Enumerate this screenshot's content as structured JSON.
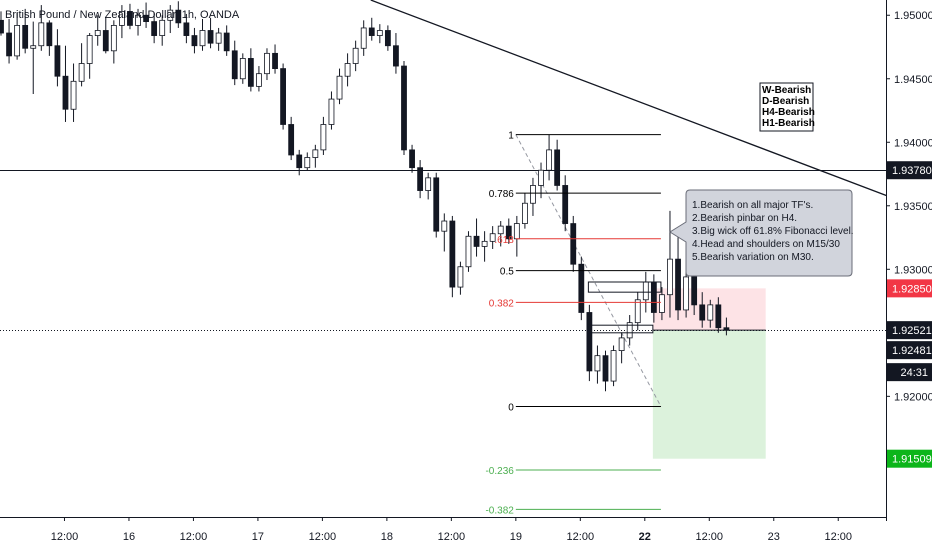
{
  "header": {
    "title": "British Pound / New Zealand Dollar, 1h, OANDA"
  },
  "colors": {
    "background": "#ffffff",
    "candle_up": "#ffffff",
    "candle_down": "#131722",
    "candle_border": "#131722",
    "fib_black": "#000000",
    "fib_red": "#e53935",
    "fib_green": "#4caf50",
    "stop_zone": "#fde3e6",
    "target_zone": "#dcf2dc",
    "badge_dark": "#131722",
    "badge_red": "#f23645",
    "badge_green": "#0cb51a",
    "note_fill": "#d1d4dc"
  },
  "chart_data": {
    "type": "candlestick",
    "symbol": "British Pound / New Zealand Dollar",
    "timeframe": "1h",
    "source": "OANDA",
    "ylim": [
      1.9105,
      1.9512
    ],
    "y_ticks": [
      {
        "value": 1.95,
        "label": "1.95000"
      },
      {
        "value": 1.945,
        "label": "1.94500"
      },
      {
        "value": 1.94,
        "label": "1.94000"
      },
      {
        "value": 1.935,
        "label": "1.93500"
      },
      {
        "value": 1.93,
        "label": "1.93000"
      },
      {
        "value": 1.92,
        "label": "1.92000"
      }
    ],
    "x_ticks": [
      {
        "index": 8,
        "label": "12:00"
      },
      {
        "index": 16,
        "label": "16"
      },
      {
        "index": 24,
        "label": "12:00"
      },
      {
        "index": 32,
        "label": "17"
      },
      {
        "index": 40,
        "label": "12:00"
      },
      {
        "index": 48,
        "label": "18"
      },
      {
        "index": 56,
        "label": "12:00"
      },
      {
        "index": 64,
        "label": "19"
      },
      {
        "index": 72,
        "label": "12:00"
      },
      {
        "index": 80,
        "label": "22",
        "bold": true
      },
      {
        "index": 88,
        "label": "12:00"
      },
      {
        "index": 96,
        "label": "23"
      },
      {
        "index": 104,
        "label": "12:00"
      }
    ],
    "candles": [
      [
        1.9496,
        1.9503,
        1.9484,
        1.9486
      ],
      [
        1.9486,
        1.9497,
        1.9462,
        1.9468
      ],
      [
        1.9468,
        1.9502,
        1.9465,
        1.9492
      ],
      [
        1.9492,
        1.9505,
        1.947,
        1.9474
      ],
      [
        1.9474,
        1.9495,
        1.9438,
        1.9476
      ],
      [
        1.9476,
        1.9508,
        1.9472,
        1.9494
      ],
      [
        1.9494,
        1.9496,
        1.9468,
        1.9476
      ],
      [
        1.9476,
        1.9489,
        1.9444,
        1.9452
      ],
      [
        1.9452,
        1.9476,
        1.9416,
        1.9426
      ],
      [
        1.9426,
        1.9462,
        1.9416,
        1.9448
      ],
      [
        1.9448,
        1.9478,
        1.9444,
        1.9462
      ],
      [
        1.9462,
        1.9486,
        1.945,
        1.9484
      ],
      [
        1.9484,
        1.95,
        1.9476,
        1.9488
      ],
      [
        1.9488,
        1.9498,
        1.947,
        1.9472
      ],
      [
        1.9472,
        1.9496,
        1.9462,
        1.9492
      ],
      [
        1.9492,
        1.9508,
        1.9482,
        1.9503
      ],
      [
        1.9503,
        1.9509,
        1.9489,
        1.9492
      ],
      [
        1.9492,
        1.9505,
        1.9484,
        1.95
      ],
      [
        1.95,
        1.951,
        1.949,
        1.9495
      ],
      [
        1.9495,
        1.9502,
        1.9478,
        1.9484
      ],
      [
        1.9484,
        1.95,
        1.9476,
        1.9496
      ],
      [
        1.9496,
        1.9508,
        1.9486,
        1.9504
      ],
      [
        1.9504,
        1.9511,
        1.949,
        1.9494
      ],
      [
        1.9494,
        1.9501,
        1.9478,
        1.9484
      ],
      [
        1.9484,
        1.949,
        1.947,
        1.9476
      ],
      [
        1.9476,
        1.9497,
        1.9472,
        1.9488
      ],
      [
        1.9488,
        1.9498,
        1.9474,
        1.9478
      ],
      [
        1.9478,
        1.949,
        1.9472,
        1.9486
      ],
      [
        1.9486,
        1.9492,
        1.9468,
        1.9472
      ],
      [
        1.9472,
        1.948,
        1.9445,
        1.945
      ],
      [
        1.945,
        1.947,
        1.9446,
        1.9466
      ],
      [
        1.9466,
        1.9474,
        1.944,
        1.9444
      ],
      [
        1.9444,
        1.946,
        1.944,
        1.9454
      ],
      [
        1.9454,
        1.9474,
        1.9449,
        1.947
      ],
      [
        1.947,
        1.9477,
        1.9454,
        1.9458
      ],
      [
        1.9458,
        1.9462,
        1.941,
        1.9414
      ],
      [
        1.9414,
        1.942,
        1.9386,
        1.939
      ],
      [
        1.939,
        1.9394,
        1.9374,
        1.938
      ],
      [
        1.938,
        1.9392,
        1.9378,
        1.9388
      ],
      [
        1.9388,
        1.9398,
        1.938,
        1.9394
      ],
      [
        1.9394,
        1.942,
        1.939,
        1.9414
      ],
      [
        1.9414,
        1.944,
        1.941,
        1.9434
      ],
      [
        1.9434,
        1.9458,
        1.943,
        1.9452
      ],
      [
        1.9452,
        1.947,
        1.9444,
        1.9462
      ],
      [
        1.9462,
        1.948,
        1.9456,
        1.9474
      ],
      [
        1.9474,
        1.9496,
        1.9468,
        1.949
      ],
      [
        1.949,
        1.9498,
        1.948,
        1.9484
      ],
      [
        1.9484,
        1.9493,
        1.9478,
        1.9488
      ],
      [
        1.9488,
        1.9492,
        1.9472,
        1.9476
      ],
      [
        1.9476,
        1.9486,
        1.9454,
        1.946
      ],
      [
        1.946,
        1.9464,
        1.939,
        1.9394
      ],
      [
        1.9394,
        1.9398,
        1.9376,
        1.938
      ],
      [
        1.938,
        1.9386,
        1.9356,
        1.9362
      ],
      [
        1.9362,
        1.9376,
        1.9355,
        1.9372
      ],
      [
        1.9372,
        1.9376,
        1.9325,
        1.933
      ],
      [
        1.933,
        1.9344,
        1.9314,
        1.9338
      ],
      [
        1.9338,
        1.9342,
        1.9278,
        1.9286
      ],
      [
        1.9286,
        1.9306,
        1.928,
        1.9302
      ],
      [
        1.9302,
        1.933,
        1.9298,
        1.9326
      ],
      [
        1.9326,
        1.934,
        1.931,
        1.9318
      ],
      [
        1.9318,
        1.933,
        1.9306,
        1.9322
      ],
      [
        1.9322,
        1.9334,
        1.9316,
        1.9328
      ],
      [
        1.9328,
        1.9338,
        1.9318,
        1.9334
      ],
      [
        1.9334,
        1.934,
        1.932,
        1.9324
      ],
      [
        1.9324,
        1.9342,
        1.931,
        1.9336
      ],
      [
        1.9336,
        1.936,
        1.9332,
        1.9352
      ],
      [
        1.9352,
        1.9372,
        1.9342,
        1.9366
      ],
      [
        1.9366,
        1.9384,
        1.9356,
        1.9378
      ],
      [
        1.9378,
        1.9406,
        1.937,
        1.9394
      ],
      [
        1.9394,
        1.9402,
        1.9362,
        1.9366
      ],
      [
        1.9366,
        1.9374,
        1.933,
        1.9336
      ],
      [
        1.9336,
        1.9342,
        1.9298,
        1.9304
      ],
      [
        1.9304,
        1.931,
        1.926,
        1.9266
      ],
      [
        1.9266,
        1.9272,
        1.9212,
        1.922
      ],
      [
        1.922,
        1.924,
        1.921,
        1.9232
      ],
      [
        1.9232,
        1.9236,
        1.9204,
        1.9212
      ],
      [
        1.9212,
        1.924,
        1.9208,
        1.9236
      ],
      [
        1.9236,
        1.925,
        1.9226,
        1.9246
      ],
      [
        1.9246,
        1.9264,
        1.924,
        1.9258
      ],
      [
        1.9258,
        1.9282,
        1.9252,
        1.9276
      ],
      [
        1.9276,
        1.9298,
        1.9266,
        1.929
      ],
      [
        1.929,
        1.9296,
        1.9258,
        1.9266
      ],
      [
        1.9266,
        1.9286,
        1.926,
        1.928
      ],
      [
        1.928,
        1.9346,
        1.9262,
        1.9308
      ],
      [
        1.9308,
        1.9328,
        1.926,
        1.9268
      ],
      [
        1.9268,
        1.9298,
        1.9262,
        1.9294
      ],
      [
        1.9294,
        1.93,
        1.9264,
        1.9272
      ],
      [
        1.9272,
        1.9282,
        1.9254,
        1.926
      ],
      [
        1.926,
        1.9276,
        1.9254,
        1.9272
      ],
      [
        1.9272,
        1.9278,
        1.925,
        1.9254
      ],
      [
        1.9254,
        1.9262,
        1.9248,
        1.9252
      ]
    ],
    "price_lines": [
      {
        "value": 1.9378,
        "style": "solid"
      },
      {
        "value": 1.92521,
        "style": "dotted"
      }
    ],
    "trendline": {
      "from": {
        "index": 46,
        "value": 1.9512
      },
      "to": {
        "index": 110,
        "value": 1.9358
      }
    },
    "fib_levels": [
      {
        "ratio": "1",
        "value": 1.9406,
        "color": "black"
      },
      {
        "ratio": "0.786",
        "value": 1.936,
        "color": "black"
      },
      {
        "ratio": "0.618",
        "value": 1.9324,
        "color": "red"
      },
      {
        "ratio": "0.5",
        "value": 1.9299,
        "color": "black"
      },
      {
        "ratio": "0.382",
        "value": 1.9274,
        "color": "red"
      },
      {
        "ratio": "0",
        "value": 1.9192,
        "color": "black"
      },
      {
        "ratio": "-0.236",
        "value": 1.9142,
        "color": "green"
      },
      {
        "ratio": "-0.382",
        "value": 1.9111,
        "color": "green"
      }
    ],
    "fib_label_display": {
      "1": "1",
      "0.786": "0.786",
      "0.618": ".618",
      "0.5": "0.5",
      "0.382": "0.382",
      "0": "0",
      "-0.236": "-0.236",
      "-0.382": "-0.382"
    },
    "fib_x_range": [
      64,
      82
    ],
    "diagonal": {
      "from": {
        "index": 64,
        "value": 1.9406
      },
      "to": {
        "index": 82,
        "value": 1.9192
      }
    },
    "position": {
      "entry": 1.92521,
      "stop": 1.9285,
      "target": 1.91509,
      "from_index": 81,
      "to_index": 95
    },
    "pattern_boxes": [
      {
        "from_index": 73,
        "to_index": 82,
        "top": 1.929,
        "bottom": 1.9282
      },
      {
        "from_index": 73,
        "to_index": 81,
        "top": 1.9256,
        "bottom": 1.925
      }
    ],
    "price_badges": [
      {
        "label": "1.93780",
        "value": 1.9378,
        "kind": "dark"
      },
      {
        "label": "1.92850",
        "value": 1.9285,
        "kind": "red"
      },
      {
        "label": "1.92521",
        "value": 1.92521,
        "kind": "dark"
      },
      {
        "label": "1.92481",
        "value": 1.92481,
        "kind": "dark"
      },
      {
        "label": "24:31",
        "value": null,
        "kind": "dark"
      },
      {
        "label": "1.91509",
        "value": 1.91509,
        "kind": "green"
      }
    ],
    "bias_labels": [
      "W-Bearish",
      "D-Bearish",
      "H4-Bearish",
      "H1-Bearish"
    ],
    "notes": [
      "1.Bearish on all major TF's.",
      "2.Bearish pinbar on H4.",
      "3.Big wick off 61.8% Fibonacci level.",
      "4.Head and shoulders on M15/30",
      "5.Bearish variation on M30."
    ]
  }
}
